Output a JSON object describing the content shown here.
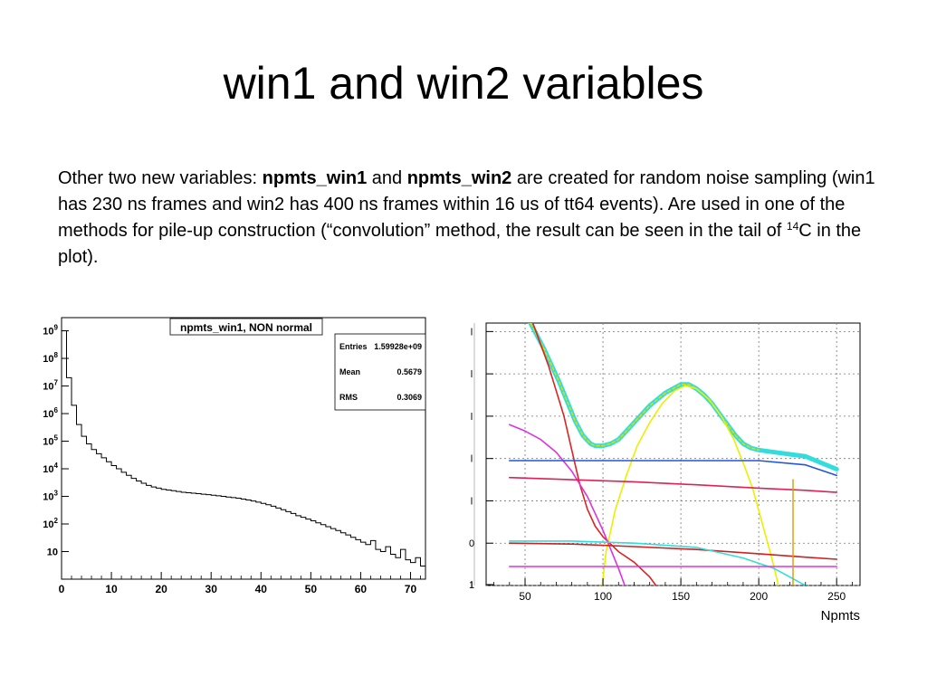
{
  "slide": {
    "title": "win1 and win2  variables",
    "body": {
      "intro": "Other two new variables: ",
      "var1": "npmts_win1",
      "and": " and ",
      "var2": "npmts_win2",
      "rest": " are created for random noise sampling (win1 has 230 ns frames and win2 has 400 ns frames within 16 us of tt64 events). Are used in one of the methods for pile-up construction (“convolution” method, the result can be seen in the tail of ",
      "sup": "14",
      "tail": "C in the plot)."
    }
  },
  "chart_data": [
    {
      "type": "bar",
      "title": "npmts_win1, NON normal",
      "xlabel": "",
      "ylabel": "",
      "xlim": [
        0,
        73
      ],
      "ylim": [
        1,
        3000000000
      ],
      "yscale": "log",
      "grid": false,
      "x_ticks": [
        0,
        10,
        20,
        30,
        40,
        50,
        60,
        70
      ],
      "y_ticks": [
        {
          "value": 10,
          "label": "10"
        },
        {
          "value": 100,
          "base": "10",
          "exp": "2"
        },
        {
          "value": 1000,
          "base": "10",
          "exp": "3"
        },
        {
          "value": 10000,
          "base": "10",
          "exp": "4"
        },
        {
          "value": 100000,
          "base": "10",
          "exp": "5"
        },
        {
          "value": 1000000,
          "base": "10",
          "exp": "6"
        },
        {
          "value": 10000000,
          "base": "10",
          "exp": "7"
        },
        {
          "value": 100000000,
          "base": "10",
          "exp": "8"
        },
        {
          "value": 1000000000,
          "base": "10",
          "exp": "9"
        }
      ],
      "stats": {
        "placement": "top-right",
        "rows": [
          {
            "label": "Entries",
            "value": "1.59928e+09"
          },
          {
            "label": "Mean",
            "value": "0.5679"
          },
          {
            "label": "RMS",
            "value": "0.3069"
          }
        ]
      },
      "bins": [
        0,
        1,
        2,
        3,
        4,
        5,
        6,
        7,
        8,
        9,
        10,
        11,
        12,
        13,
        14,
        15,
        16,
        17,
        18,
        19,
        20,
        21,
        22,
        23,
        24,
        25,
        26,
        27,
        28,
        29,
        30,
        31,
        32,
        33,
        34,
        35,
        36,
        37,
        38,
        39,
        40,
        41,
        42,
        43,
        44,
        45,
        46,
        47,
        48,
        49,
        50,
        51,
        52,
        53,
        54,
        55,
        56,
        57,
        58,
        59,
        60,
        61,
        62,
        63,
        64,
        65,
        66,
        67,
        68,
        69,
        70,
        71,
        72
      ],
      "values": [
        1000000000,
        20000000,
        2000000,
        400000,
        150000,
        80000,
        50000,
        35000,
        25000,
        18000,
        13000,
        10000,
        7500,
        5800,
        4500,
        3600,
        3000,
        2500,
        2200,
        2000,
        1800,
        1700,
        1600,
        1500,
        1400,
        1350,
        1300,
        1250,
        1200,
        1150,
        1100,
        1050,
        1000,
        950,
        900,
        860,
        800,
        740,
        680,
        620,
        560,
        500,
        440,
        380,
        330,
        280,
        240,
        200,
        175,
        150,
        130,
        110,
        95,
        80,
        68,
        58,
        48,
        40,
        33,
        27,
        22,
        18,
        25,
        12,
        10,
        15,
        8,
        6,
        12,
        5,
        4,
        6,
        3
      ]
    },
    {
      "type": "line",
      "xlabel": "Npmts",
      "xlim": [
        25,
        265
      ],
      "ylim": [
        -1,
        5.2
      ],
      "grid": true,
      "x_ticks": [
        50,
        100,
        150,
        200,
        250
      ],
      "y_ticks": [
        {
          "value": 5,
          "label": "l"
        },
        {
          "value": 4,
          "label": "l"
        },
        {
          "value": 3,
          "label": "l"
        },
        {
          "value": 2,
          "label": "l"
        },
        {
          "value": 1,
          "label": "l"
        },
        {
          "value": 0,
          "label": "0"
        },
        {
          "value": -1,
          "label": "1"
        },
        {
          "value": -2,
          "label": "l"
        }
      ],
      "series": [
        {
          "color": "#33dddd",
          "width": 5,
          "dashed": false,
          "x": [
            52,
            57,
            62,
            67,
            72,
            77,
            82,
            87,
            92,
            95,
            100,
            105,
            110,
            115,
            120,
            125,
            130,
            135,
            140,
            145,
            150,
            155,
            160,
            165,
            170,
            175,
            180,
            185,
            190,
            195,
            200,
            210,
            220,
            230,
            240,
            250
          ],
          "y": [
            5.3,
            4.95,
            4.6,
            4.2,
            3.8,
            3.35,
            2.9,
            2.55,
            2.35,
            2.3,
            2.3,
            2.35,
            2.45,
            2.65,
            2.85,
            3.05,
            3.25,
            3.4,
            3.55,
            3.65,
            3.75,
            3.75,
            3.65,
            3.5,
            3.3,
            3.05,
            2.8,
            2.55,
            2.35,
            2.25,
            2.2,
            2.15,
            2.1,
            2.05,
            1.9,
            1.75
          ]
        },
        {
          "color": "#dddd00",
          "width": 1.6,
          "dashed": true,
          "x": [
            52,
            57,
            62,
            67,
            72,
            77,
            82,
            87,
            92,
            95,
            100,
            105,
            110,
            115,
            120,
            125,
            130,
            135,
            140,
            145,
            150,
            155,
            160,
            165,
            170,
            175,
            180,
            185,
            190,
            195,
            200
          ],
          "y": [
            5.3,
            4.95,
            4.6,
            4.2,
            3.8,
            3.35,
            2.9,
            2.55,
            2.35,
            2.3,
            2.3,
            2.35,
            2.45,
            2.65,
            2.85,
            3.05,
            3.25,
            3.4,
            3.55,
            3.65,
            3.75,
            3.75,
            3.65,
            3.5,
            3.3,
            3.05,
            2.8,
            2.55,
            2.35,
            2.25,
            2.2
          ]
        },
        {
          "color": "#eeee00",
          "width": 1.6,
          "dashed": false,
          "x": [
            97,
            102,
            108,
            115,
            122,
            130,
            138,
            146,
            153,
            160,
            168,
            176,
            184,
            190,
            196,
            202,
            208,
            214,
            218
          ],
          "y": [
            -1.8,
            -0.2,
            0.8,
            1.6,
            2.3,
            2.85,
            3.3,
            3.6,
            3.72,
            3.65,
            3.4,
            3.0,
            2.45,
            1.9,
            1.3,
            0.5,
            -0.3,
            -1.2,
            -1.8
          ]
        },
        {
          "color": "#dd2222",
          "width": 1.6,
          "dashed": false,
          "x": [
            55,
            60,
            65,
            70,
            75,
            80,
            85,
            90,
            95,
            100,
            110,
            120,
            130,
            140,
            148
          ],
          "y": [
            5.2,
            4.7,
            4.2,
            3.6,
            3.0,
            2.2,
            1.4,
            0.8,
            0.4,
            0.15,
            -0.2,
            -0.45,
            -0.8,
            -1.3,
            -2.0
          ]
        },
        {
          "color": "#dd33dd",
          "width": 1.6,
          "dashed": false,
          "x": [
            40,
            50,
            60,
            70,
            80,
            90,
            100,
            110,
            118,
            125
          ],
          "y": [
            2.8,
            2.65,
            2.45,
            2.15,
            1.7,
            1.1,
            0.3,
            -0.6,
            -1.4,
            -2.0
          ]
        },
        {
          "color": "#2255dd",
          "width": 1.6,
          "dashed": false,
          "x": [
            40,
            80,
            120,
            160,
            200,
            230,
            250
          ],
          "y": [
            1.95,
            1.95,
            1.95,
            1.95,
            1.95,
            1.85,
            1.6
          ]
        },
        {
          "color": "#dd2255",
          "width": 1.6,
          "dashed": false,
          "x": [
            40,
            80,
            120,
            160,
            200,
            230,
            250
          ],
          "y": [
            1.55,
            1.5,
            1.45,
            1.38,
            1.3,
            1.25,
            1.2
          ]
        },
        {
          "color": "#cc2222",
          "width": 1.6,
          "dashed": false,
          "x": [
            40,
            80,
            120,
            160,
            200,
            230,
            250
          ],
          "y": [
            0.0,
            -0.02,
            -0.08,
            -0.15,
            -0.25,
            -0.33,
            -0.38
          ]
        },
        {
          "color": "#33dddd",
          "width": 1.6,
          "dashed": false,
          "x": [
            40,
            80,
            120,
            160,
            190,
            210,
            230,
            250
          ],
          "y": [
            0.05,
            0.05,
            0.0,
            -0.1,
            -0.35,
            -0.6,
            -1.0,
            -1.5
          ]
        },
        {
          "color": "#dd33dd",
          "width": 1.6,
          "dashed": false,
          "x": [
            40,
            100,
            160,
            220,
            250
          ],
          "y": [
            -0.55,
            -0.55,
            -0.55,
            -0.55,
            -0.55
          ]
        },
        {
          "color": "#dd9900",
          "width": 1.4,
          "dashed": false,
          "x": [
            222,
            222
          ],
          "y": [
            -2.0,
            1.5
          ]
        }
      ]
    }
  ]
}
